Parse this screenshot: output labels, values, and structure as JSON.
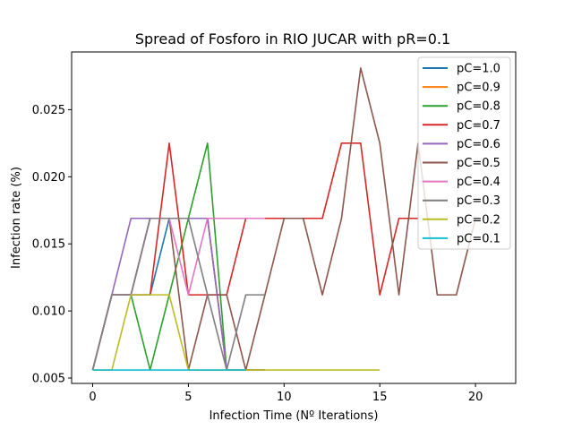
{
  "chart_data": {
    "type": "line",
    "title": "Spread of Fosforo in RIO JUCAR with pR=0.1",
    "xlabel": "Infection Time (Nº Iterations)",
    "ylabel": "Infection rate (%)",
    "xlim": [
      -1.1,
      22.1
    ],
    "ylim": [
      0.0046,
      0.0293
    ],
    "xticks": [
      0,
      5,
      10,
      15,
      20
    ],
    "yticks": [
      0.005,
      0.01,
      0.015,
      0.02,
      0.025
    ],
    "ytick_labels": [
      "0.005",
      "0.010",
      "0.015",
      "0.020",
      "0.025"
    ],
    "grid": false,
    "legend_position": "top-right",
    "series": [
      {
        "name": "pC=1.0",
        "color": "#1f77b4",
        "x": [
          0,
          1,
          2,
          3,
          4,
          5,
          6,
          7,
          8,
          9
        ],
        "y": [
          0.0056,
          0.0112,
          0.0112,
          0.0112,
          0.0169,
          0.0169,
          0.0169,
          0.0056,
          0.0056,
          0.0056
        ]
      },
      {
        "name": "pC=0.9",
        "color": "#ff7f0e",
        "x": [
          0,
          1,
          2,
          3,
          4,
          5,
          6,
          7,
          8,
          9
        ],
        "y": [
          0.0056,
          0.0112,
          0.0112,
          0.0169,
          0.0169,
          0.0169,
          0.0169,
          0.0056,
          0.0056,
          0.0056
        ]
      },
      {
        "name": "pC=0.8",
        "color": "#2ca02c",
        "x": [
          0,
          1,
          2,
          3,
          4,
          5,
          6,
          7,
          8
        ],
        "y": [
          0.0056,
          0.0112,
          0.0112,
          0.0056,
          0.0112,
          0.0169,
          0.0225,
          0.0056,
          0.0056
        ]
      },
      {
        "name": "pC=0.7",
        "color": "#d62728",
        "x": [
          0,
          1,
          2,
          3,
          4,
          5,
          6,
          7,
          8,
          9,
          10,
          11,
          12,
          13,
          14,
          15,
          16,
          17
        ],
        "y": [
          0.0056,
          0.0112,
          0.0112,
          0.0112,
          0.0225,
          0.0112,
          0.0112,
          0.0112,
          0.0169,
          0.0169,
          0.0169,
          0.0169,
          0.0169,
          0.0225,
          0.0225,
          0.0112,
          0.0169,
          0.0169
        ]
      },
      {
        "name": "pC=0.6",
        "color": "#9467bd",
        "x": [
          0,
          1,
          2,
          3,
          4,
          5,
          6,
          7,
          8,
          9
        ],
        "y": [
          0.0056,
          0.0112,
          0.0169,
          0.0169,
          0.0169,
          0.0169,
          0.0169,
          0.0056,
          0.0056,
          0.0056
        ]
      },
      {
        "name": "pC=0.5",
        "color": "#8c564b",
        "x": [
          0,
          1,
          2,
          3,
          4,
          5,
          6,
          7,
          8,
          9,
          10,
          11,
          12,
          13,
          14,
          15,
          16,
          17,
          18,
          19,
          20
        ],
        "y": [
          0.0056,
          0.0112,
          0.0112,
          0.0169,
          0.0169,
          0.0056,
          0.0112,
          0.0112,
          0.0056,
          0.0112,
          0.0169,
          0.0169,
          0.0112,
          0.0169,
          0.0281,
          0.0225,
          0.0112,
          0.0225,
          0.0112,
          0.0112,
          0.0169
        ]
      },
      {
        "name": "pC=0.4",
        "color": "#e377c2",
        "x": [
          0,
          1,
          2,
          3,
          4,
          5,
          6,
          7,
          8,
          9
        ],
        "y": [
          0.0056,
          0.0112,
          0.0112,
          0.0169,
          0.0169,
          0.0112,
          0.0169,
          0.0169,
          0.0169,
          0.0169
        ]
      },
      {
        "name": "pC=0.3",
        "color": "#7f7f7f",
        "x": [
          0,
          1,
          2,
          3,
          4,
          5,
          6,
          7,
          8,
          9
        ],
        "y": [
          0.0056,
          0.0112,
          0.0112,
          0.0169,
          0.0169,
          0.0169,
          0.0112,
          0.0056,
          0.0112,
          0.0112
        ]
      },
      {
        "name": "pC=0.2",
        "color": "#bcbd22",
        "x": [
          0,
          1,
          2,
          3,
          4,
          5,
          6,
          7,
          8,
          9,
          10,
          11,
          12,
          13,
          14,
          15
        ],
        "y": [
          0.0056,
          0.0056,
          0.0112,
          0.0112,
          0.0112,
          0.0056,
          0.0056,
          0.0056,
          0.0056,
          0.0056,
          0.0056,
          0.0056,
          0.0056,
          0.0056,
          0.0056,
          0.0056
        ]
      },
      {
        "name": "pC=0.1",
        "color": "#17becf",
        "x": [
          0,
          1,
          2,
          3,
          4,
          5,
          6,
          7,
          8
        ],
        "y": [
          0.0056,
          0.0056,
          0.0056,
          0.0056,
          0.0056,
          0.0056,
          0.0056,
          0.0056,
          0.0056
        ]
      }
    ]
  }
}
